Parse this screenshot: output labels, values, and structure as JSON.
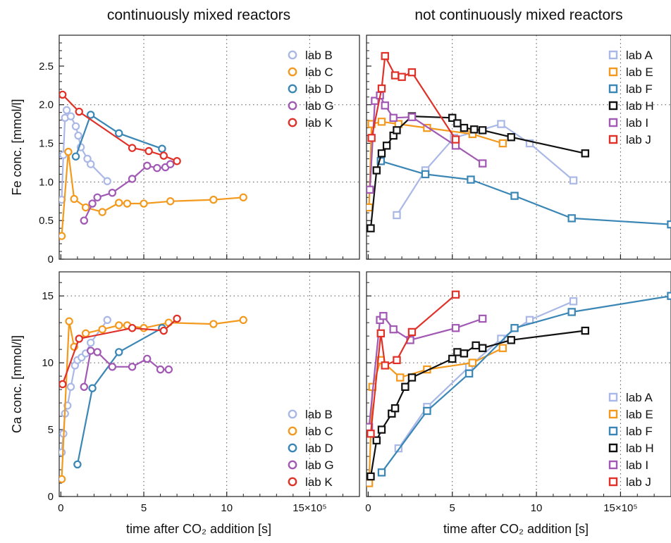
{
  "colors": {
    "lab A": "#a9b8e6",
    "lab B": "#a9b8e6",
    "lab C": "#f39a1e",
    "lab E": "#f39a1e",
    "lab D": "#3a86b5",
    "lab F": "#3a86b5",
    "lab G": "#a159b4",
    "lab I": "#a159b4",
    "lab H": "#111111",
    "lab J": "#e03128",
    "lab K": "#e03128"
  },
  "chart_data": [
    {
      "panel": "top-left",
      "type": "line",
      "marker": "circle",
      "title": "continuously mixed reactors",
      "ylabel": "Fe conc. [mmol/l]",
      "xlim": [
        -0.1,
        18
      ],
      "ylim": [
        0,
        2.9
      ],
      "xticks": [
        0,
        5,
        10,
        15
      ],
      "xtick_labels": [
        "",
        "",
        "",
        ""
      ],
      "yticks": [
        0,
        0.5,
        1.0,
        1.5,
        2.0,
        2.5
      ],
      "ytick_labels": [
        "0",
        "0.5",
        "1.0",
        "1.5",
        "2.0",
        "2.5"
      ],
      "grid_x": [
        5,
        10,
        15
      ],
      "grid_y": [
        1.0,
        2.0
      ],
      "legend": "top-right",
      "series": [
        {
          "name": "lab B",
          "x": [
            0.05,
            0.15,
            0.25,
            0.35,
            0.6,
            0.9,
            1.05,
            1.2,
            1.6,
            1.8,
            2.8
          ],
          "y": [
            0.77,
            1.35,
            1.83,
            1.93,
            1.85,
            1.72,
            1.6,
            1.45,
            1.3,
            1.23,
            1.01
          ]
        },
        {
          "name": "lab C",
          "x": [
            0.05,
            0.45,
            0.8,
            1.5,
            2.5,
            3.5,
            4.0,
            5.0,
            6.6,
            9.2,
            11.0
          ],
          "y": [
            0.3,
            1.39,
            0.78,
            0.67,
            0.61,
            0.73,
            0.72,
            0.72,
            0.75,
            0.77,
            0.8
          ]
        },
        {
          "name": "lab D",
          "x": [
            0.9,
            1.8,
            3.5,
            6.1
          ],
          "y": [
            1.33,
            1.87,
            1.63,
            1.43
          ]
        },
        {
          "name": "lab G",
          "x": [
            1.4,
            1.9,
            2.2,
            3.1,
            4.3,
            5.2,
            5.8,
            6.3,
            6.6
          ],
          "y": [
            0.5,
            0.72,
            0.8,
            0.86,
            1.04,
            1.21,
            1.18,
            1.19,
            1.23
          ]
        },
        {
          "name": "lab K",
          "x": [
            0.1,
            1.1,
            4.3,
            5.3,
            6.2,
            7.0
          ],
          "y": [
            2.13,
            1.91,
            1.44,
            1.4,
            1.34,
            1.27
          ]
        }
      ]
    },
    {
      "panel": "top-right",
      "type": "line",
      "marker": "square",
      "title": "not continuously mixed reactors",
      "ylabel": "",
      "xlim": [
        -0.1,
        18
      ],
      "ylim": [
        0,
        2.9
      ],
      "xticks": [
        0,
        5,
        10,
        15
      ],
      "xtick_labels": [
        "",
        "",
        "",
        ""
      ],
      "yticks": [
        0,
        0.5,
        1.0,
        1.5,
        2.0,
        2.5
      ],
      "ytick_labels": [
        "",
        "",
        "",
        "",
        "",
        ""
      ],
      "grid_x": [
        5,
        10,
        15
      ],
      "grid_y": [
        1.0,
        2.0
      ],
      "legend": "top-right",
      "series": [
        {
          "name": "lab A",
          "x": [
            1.7,
            3.4,
            5.1,
            7.9,
            9.6,
            12.2
          ],
          "y": [
            0.57,
            1.15,
            1.57,
            1.75,
            1.5,
            1.02
          ]
        },
        {
          "name": "lab E",
          "x": [
            0.05,
            0.2,
            0.8,
            1.8,
            3.5,
            6.2,
            8.0
          ],
          "y": [
            0.67,
            1.75,
            1.78,
            1.75,
            1.7,
            1.62,
            1.5
          ]
        },
        {
          "name": "lab F",
          "x": [
            0.75,
            3.4,
            6.1,
            8.7,
            12.1,
            18.0
          ],
          "y": [
            1.27,
            1.1,
            1.03,
            0.82,
            0.53,
            0.45
          ]
        },
        {
          "name": "lab H",
          "x": [
            0.15,
            0.5,
            0.8,
            1.1,
            1.5,
            1.7,
            2.6,
            5.0,
            5.3,
            5.7,
            6.3,
            6.8,
            8.5,
            12.9
          ],
          "y": [
            0.4,
            1.15,
            1.37,
            1.47,
            1.6,
            1.67,
            1.85,
            1.83,
            1.76,
            1.7,
            1.68,
            1.67,
            1.58,
            1.37
          ]
        },
        {
          "name": "lab I",
          "x": [
            0.1,
            0.4,
            0.7,
            1.0,
            1.5,
            2.6,
            5.2,
            6.8
          ],
          "y": [
            0.9,
            2.05,
            2.12,
            1.99,
            1.83,
            1.84,
            1.47,
            1.24
          ]
        },
        {
          "name": "lab J",
          "x": [
            0.2,
            0.8,
            1.0,
            1.6,
            2.0,
            2.6,
            5.2
          ],
          "y": [
            1.57,
            2.21,
            2.63,
            2.38,
            2.36,
            2.42,
            1.55
          ]
        }
      ]
    },
    {
      "panel": "bottom-left",
      "type": "line",
      "marker": "circle",
      "title": "",
      "ylabel": "Ca conc. [mmol/l]",
      "xlabel": "time after CO₂ addition [s]",
      "xlim": [
        -0.1,
        18
      ],
      "ylim": [
        0,
        16.8
      ],
      "xticks": [
        0,
        5,
        10,
        15
      ],
      "xtick_labels": [
        "0",
        "5",
        "10",
        "15×10⁵"
      ],
      "yticks": [
        0,
        5,
        10,
        15
      ],
      "ytick_labels": [
        "0",
        "5",
        "10",
        "15"
      ],
      "grid_x": [
        5,
        10,
        15
      ],
      "grid_y": [
        10,
        15
      ],
      "legend": "bottom-right",
      "series": [
        {
          "name": "lab B",
          "x": [
            0.05,
            0.15,
            0.25,
            0.4,
            0.6,
            0.85,
            1.0,
            1.25,
            1.5,
            1.8,
            2.8
          ],
          "y": [
            3.3,
            4.7,
            6.2,
            6.8,
            8.2,
            9.8,
            10.2,
            10.4,
            10.7,
            11.5,
            13.2
          ]
        },
        {
          "name": "lab C",
          "x": [
            0.05,
            0.5,
            0.8,
            1.5,
            2.5,
            3.5,
            4.0,
            5.0,
            6.5,
            9.2,
            11.0
          ],
          "y": [
            1.3,
            13.1,
            11.2,
            12.2,
            12.5,
            12.8,
            12.8,
            12.6,
            13.0,
            12.9,
            13.2
          ]
        },
        {
          "name": "lab D",
          "x": [
            1.0,
            1.9,
            3.5,
            6.1
          ],
          "y": [
            2.4,
            8.1,
            10.8,
            12.6
          ]
        },
        {
          "name": "lab G",
          "x": [
            1.4,
            1.8,
            2.2,
            3.1,
            4.3,
            5.2,
            6.0,
            6.5
          ],
          "y": [
            8.2,
            10.9,
            10.8,
            9.7,
            9.7,
            10.3,
            9.5,
            9.5
          ]
        },
        {
          "name": "lab K",
          "x": [
            0.1,
            1.1,
            4.3,
            6.2,
            7.0
          ],
          "y": [
            8.4,
            11.8,
            12.6,
            12.4,
            13.3
          ]
        }
      ]
    },
    {
      "panel": "bottom-right",
      "type": "line",
      "marker": "square",
      "title": "",
      "ylabel": "",
      "xlabel": "time after CO₂ addition [s]",
      "xlim": [
        -0.1,
        18
      ],
      "ylim": [
        0,
        16.8
      ],
      "xticks": [
        0,
        5,
        10,
        15
      ],
      "xtick_labels": [
        "0",
        "5",
        "10",
        "15×10⁵"
      ],
      "yticks": [
        0,
        5,
        10,
        15
      ],
      "ytick_labels": [
        "",
        "",
        "",
        ""
      ],
      "grid_x": [
        5,
        10,
        15
      ],
      "grid_y": [
        10,
        15
      ],
      "legend": "bottom-right",
      "series": [
        {
          "name": "lab A",
          "x": [
            1.8,
            3.5,
            6.0,
            7.9,
            9.6,
            12.2
          ],
          "y": [
            3.6,
            6.7,
            9.7,
            11.8,
            13.2,
            14.6
          ]
        },
        {
          "name": "lab E",
          "x": [
            0.05,
            0.25,
            0.75,
            1.9,
            3.5,
            6.2,
            8.0
          ],
          "y": [
            1.0,
            8.2,
            10.2,
            8.9,
            9.5,
            10.0,
            11.1
          ]
        },
        {
          "name": "lab F",
          "x": [
            0.8,
            3.5,
            6.0,
            8.7,
            12.1,
            18.0
          ],
          "y": [
            1.8,
            6.4,
            9.2,
            12.6,
            13.8,
            15.0
          ]
        },
        {
          "name": "lab H",
          "x": [
            0.15,
            0.5,
            0.8,
            1.4,
            1.6,
            2.2,
            2.6,
            5.0,
            5.3,
            5.7,
            6.4,
            6.8,
            8.5,
            12.9
          ],
          "y": [
            1.5,
            4.2,
            5.0,
            6.2,
            6.6,
            8.2,
            8.9,
            10.3,
            10.8,
            10.7,
            11.3,
            11.1,
            11.7,
            12.4
          ]
        },
        {
          "name": "lab I",
          "x": [
            0.05,
            0.7,
            0.9,
            1.5,
            2.5,
            5.2,
            6.8
          ],
          "y": [
            5.2,
            13.2,
            13.5,
            12.5,
            11.7,
            12.6,
            13.3
          ]
        },
        {
          "name": "lab J",
          "x": [
            0.15,
            0.75,
            1.0,
            1.7,
            2.6,
            5.2
          ],
          "y": [
            4.7,
            12.2,
            9.8,
            10.2,
            12.3,
            15.1
          ]
        }
      ]
    }
  ]
}
